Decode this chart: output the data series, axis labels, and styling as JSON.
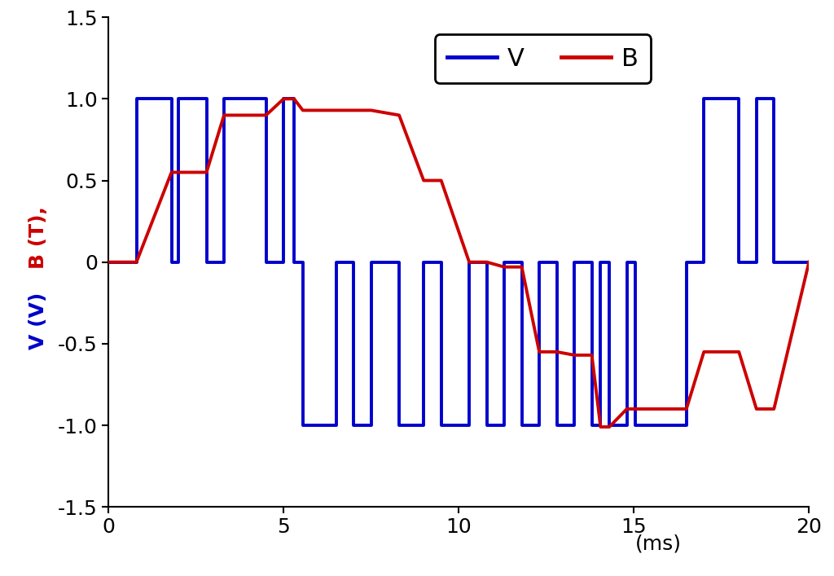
{
  "V_color": "#0000cc",
  "B_color": "#cc0000",
  "linewidth": 2.8,
  "xlim": [
    0,
    20
  ],
  "ylim": [
    -1.5,
    1.5
  ],
  "xticks": [
    0,
    5,
    10,
    15,
    20
  ],
  "yticks": [
    -1.5,
    -1.0,
    -0.5,
    0,
    0.5,
    1.0,
    1.5
  ],
  "figsize": [
    10.24,
    7.07
  ],
  "dpi": 100,
  "tick_fontsize": 18,
  "legend_fontsize": 22,
  "V_x": [
    0,
    0.8,
    0.8,
    1.8,
    1.8,
    2.0,
    2.0,
    2.8,
    2.8,
    3.3,
    3.3,
    4.5,
    4.5,
    5.0,
    5.0,
    5.3,
    5.3,
    5.55,
    5.55,
    6.5,
    6.5,
    7.0,
    7.0,
    7.5,
    7.5,
    8.3,
    8.3,
    9.0,
    9.0,
    9.5,
    9.5,
    10.3,
    10.3,
    10.8,
    10.8,
    11.3,
    11.3,
    11.8,
    11.8,
    12.3,
    12.3,
    12.8,
    12.8,
    13.3,
    13.3,
    13.8,
    13.8,
    14.05,
    14.05,
    14.3,
    14.3,
    14.8,
    14.8,
    15.05,
    15.05,
    16.5,
    16.5,
    17.0,
    17.0,
    18.0,
    18.0,
    18.5,
    18.5,
    19.0,
    19.0,
    20.0
  ],
  "V_y": [
    0,
    0,
    1,
    1,
    0,
    0,
    1,
    1,
    0,
    0,
    1,
    1,
    0,
    0,
    1,
    1,
    0,
    0,
    -1,
    -1,
    0,
    0,
    -1,
    -1,
    0,
    0,
    -1,
    -1,
    0,
    0,
    -1,
    -1,
    0,
    0,
    -1,
    -1,
    0,
    0,
    -1,
    -1,
    0,
    0,
    -1,
    -1,
    0,
    0,
    -1,
    -1,
    0,
    0,
    -1,
    -1,
    0,
    0,
    -1,
    -1,
    0,
    0,
    1,
    1,
    0,
    0,
    1,
    1,
    0,
    0
  ],
  "B_x": [
    0,
    0.8,
    1.8,
    2.8,
    3.3,
    4.5,
    5.0,
    5.3,
    5.55,
    7.5,
    8.3,
    9.0,
    9.5,
    10.3,
    10.8,
    11.3,
    11.8,
    12.3,
    12.8,
    13.3,
    13.8,
    14.05,
    14.3,
    14.8,
    15.05,
    16.5,
    17.0,
    18.0,
    18.5,
    19.0,
    20.0
  ],
  "B_y": [
    0,
    0,
    0.55,
    0.55,
    0.9,
    0.9,
    1.0,
    1.0,
    0.93,
    0.93,
    0.9,
    0.5,
    0.5,
    0.0,
    0.0,
    -0.03,
    -0.03,
    -0.55,
    -0.55,
    -0.57,
    -0.57,
    -1.01,
    -1.01,
    -0.9,
    -0.9,
    -0.9,
    -0.55,
    -0.55,
    -0.9,
    -0.9,
    0.0
  ]
}
